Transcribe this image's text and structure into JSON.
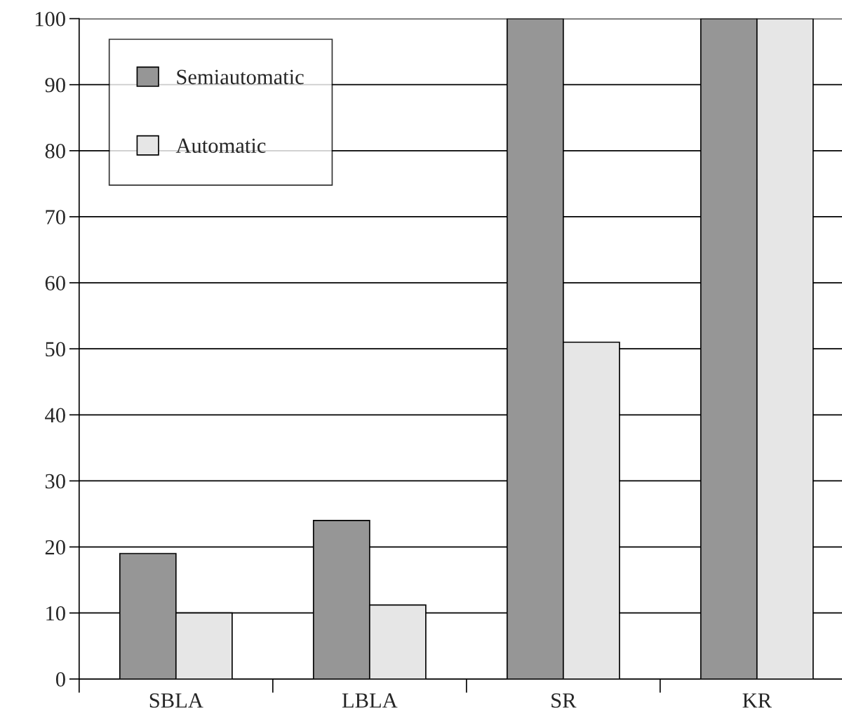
{
  "chart_data": {
    "type": "bar",
    "categories": [
      "SBLA",
      "LBLA",
      "SR",
      "KR"
    ],
    "series": [
      {
        "name": "Semiautomatic",
        "color": "#969696",
        "values": [
          19,
          24,
          100,
          100
        ]
      },
      {
        "name": "Automatic",
        "color": "#e6e6e6",
        "values": [
          10,
          11.2,
          51,
          100
        ]
      }
    ],
    "ylim": [
      0,
      100
    ],
    "yticks": [
      0,
      10,
      20,
      30,
      40,
      50,
      60,
      70,
      80,
      90,
      100
    ],
    "grid": "y",
    "legend": "top left"
  }
}
